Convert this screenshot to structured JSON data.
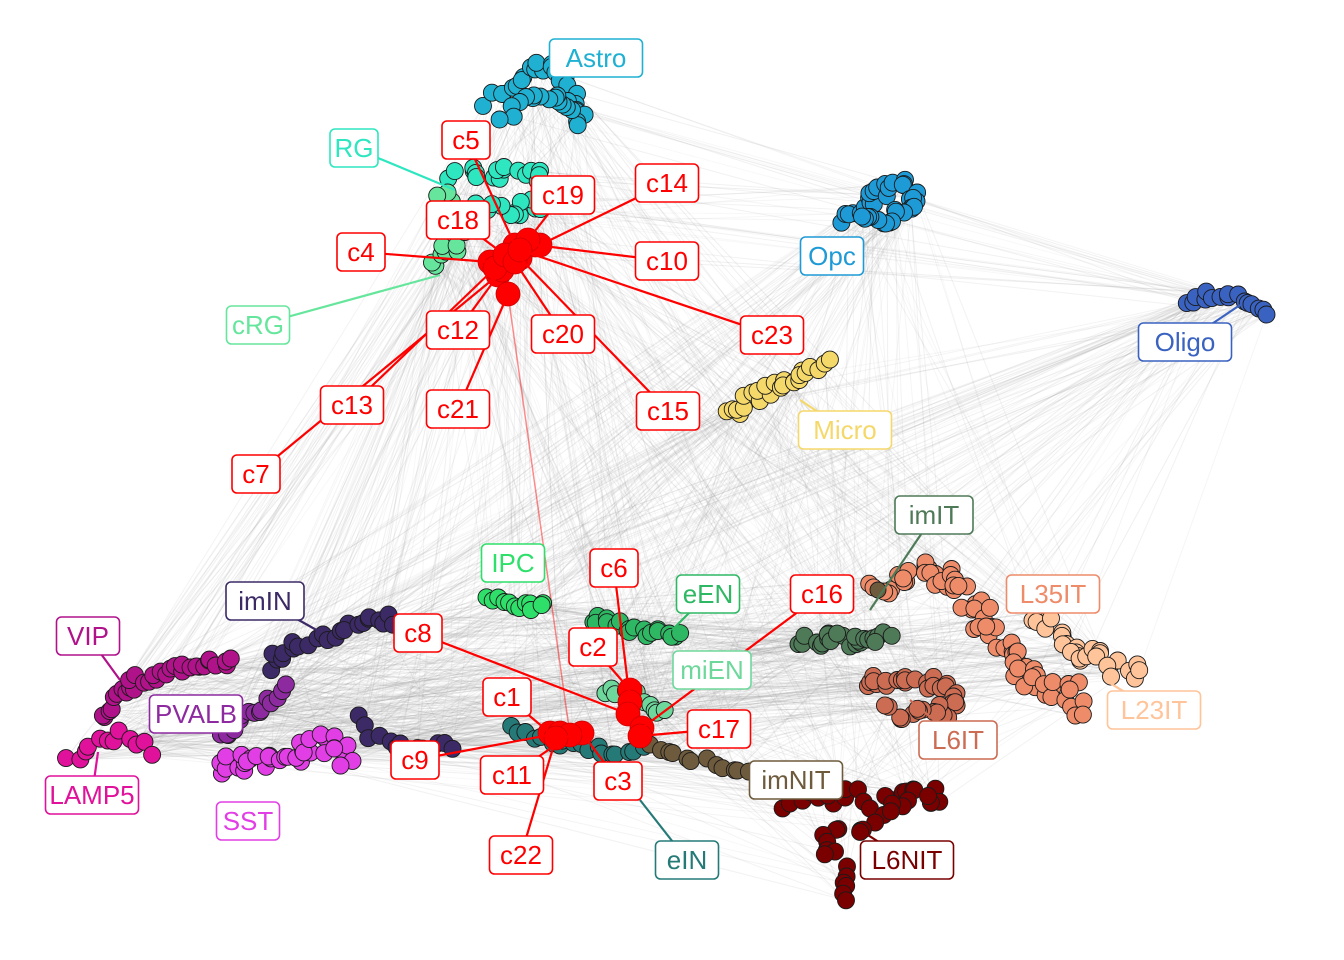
{
  "figure": {
    "clusters": [
      {
        "name": "Astro",
        "color": "#1fb0d2"
      },
      {
        "name": "RG",
        "color": "#2ee6c0"
      },
      {
        "name": "cRG",
        "color": "#66e69c"
      },
      {
        "name": "Opc",
        "color": "#1e9ad6"
      },
      {
        "name": "Oligo",
        "color": "#3a62c0"
      },
      {
        "name": "Micro",
        "color": "#f5d86a"
      },
      {
        "name": "IPC",
        "color": "#2ee06a"
      },
      {
        "name": "imIN",
        "color": "#3c2a66"
      },
      {
        "name": "VIP",
        "color": "#b0128a"
      },
      {
        "name": "PVALB",
        "color": "#8e2aa0"
      },
      {
        "name": "LAMP5",
        "color": "#e0119a"
      },
      {
        "name": "SST",
        "color": "#e23ee6"
      },
      {
        "name": "eEN",
        "color": "#2fb864"
      },
      {
        "name": "miEN",
        "color": "#6ed89c"
      },
      {
        "name": "eIN",
        "color": "#257a78"
      },
      {
        "name": "imNIT",
        "color": "#6e5a3c"
      },
      {
        "name": "L6NIT",
        "color": "#7a0000"
      },
      {
        "name": "imIT",
        "color": "#4e7a58"
      },
      {
        "name": "L35IT",
        "color": "#ee8c6a"
      },
      {
        "name": "L23IT",
        "color": "#ffc49a"
      },
      {
        "name": "L6IT",
        "color": "#cc6c52"
      }
    ],
    "highlighted": {
      "color": "#ff0000",
      "labels": [
        "c1",
        "c2",
        "c3",
        "c4",
        "c5",
        "c6",
        "c7",
        "c8",
        "c9",
        "c10",
        "c11",
        "c12",
        "c13",
        "c14",
        "c15",
        "c16",
        "c17",
        "c18",
        "c19",
        "c20",
        "c21",
        "c22",
        "c23"
      ]
    }
  }
}
